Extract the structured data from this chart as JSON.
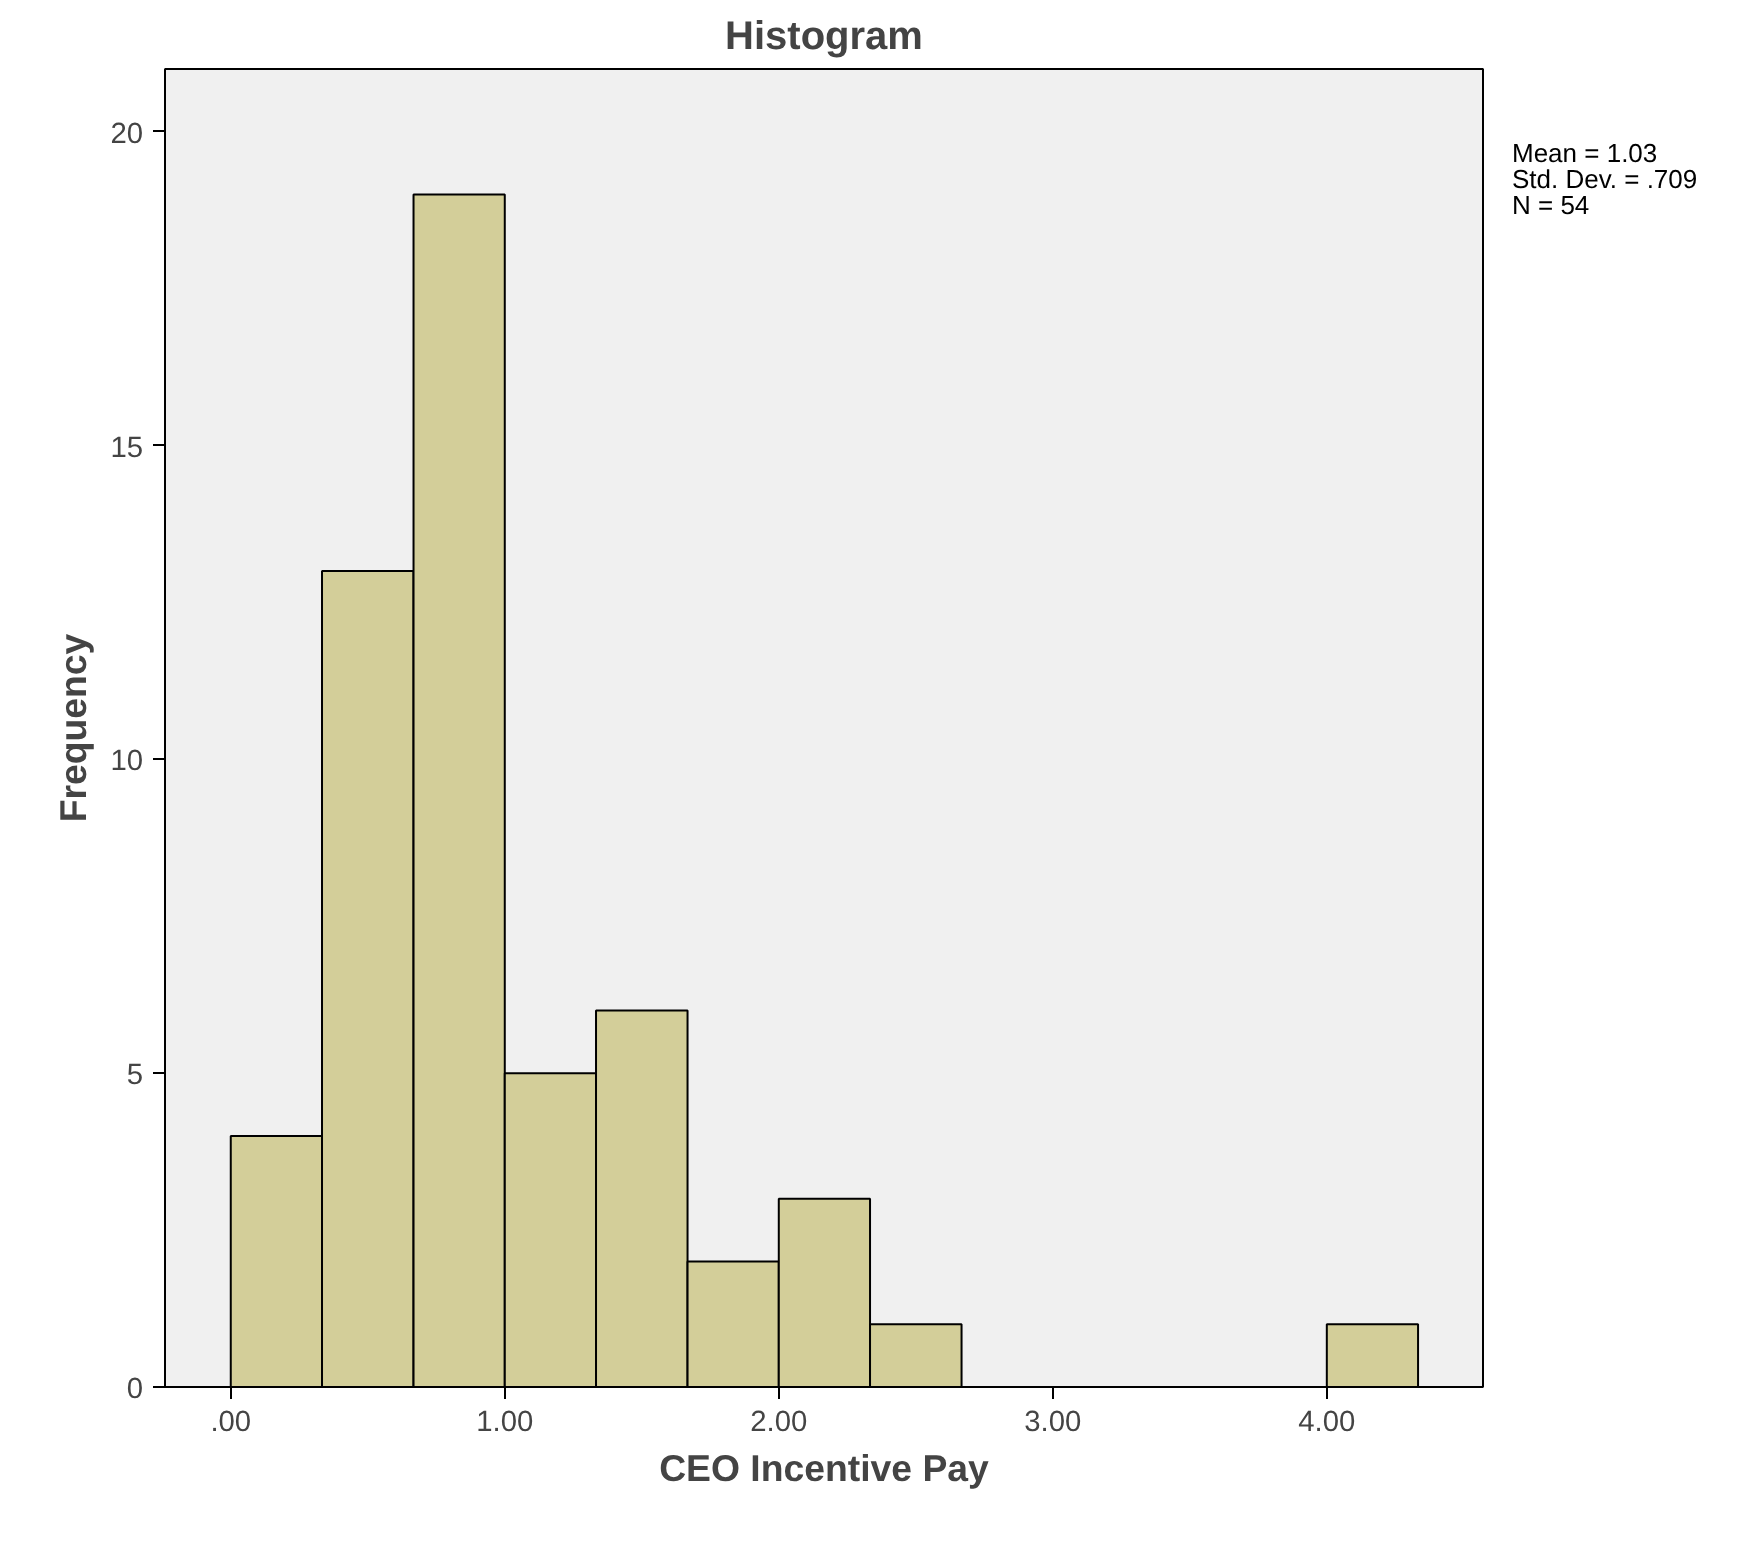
{
  "chart_data": {
    "type": "histogram",
    "title": "Histogram",
    "xlabel": "CEO Incentive Pay",
    "ylabel": "Frequency",
    "bins": [
      0,
      0.333,
      0.667,
      1,
      1.333,
      1.667,
      2,
      2.333,
      2.667,
      3,
      3.333,
      3.667,
      4,
      4.333
    ],
    "values": [
      4,
      13,
      19,
      5,
      6,
      2,
      3,
      1,
      0,
      0,
      0,
      0,
      1
    ],
    "color": "#d3ce99",
    "xlim": [
      -0.24,
      4.57
    ],
    "ylim": [
      0,
      21
    ],
    "xticks": [
      {
        "value": 0,
        "label": ".00"
      },
      {
        "value": 1,
        "label": "1.00"
      },
      {
        "value": 2,
        "label": "2.00"
      },
      {
        "value": 3,
        "label": "3.00"
      },
      {
        "value": 4,
        "label": "4.00"
      }
    ],
    "yticks": [
      0,
      5,
      10,
      15,
      20
    ],
    "grid": false,
    "annotations": [
      "Mean = 1.03",
      "Std. Dev. = .709",
      "N = 54"
    ]
  }
}
